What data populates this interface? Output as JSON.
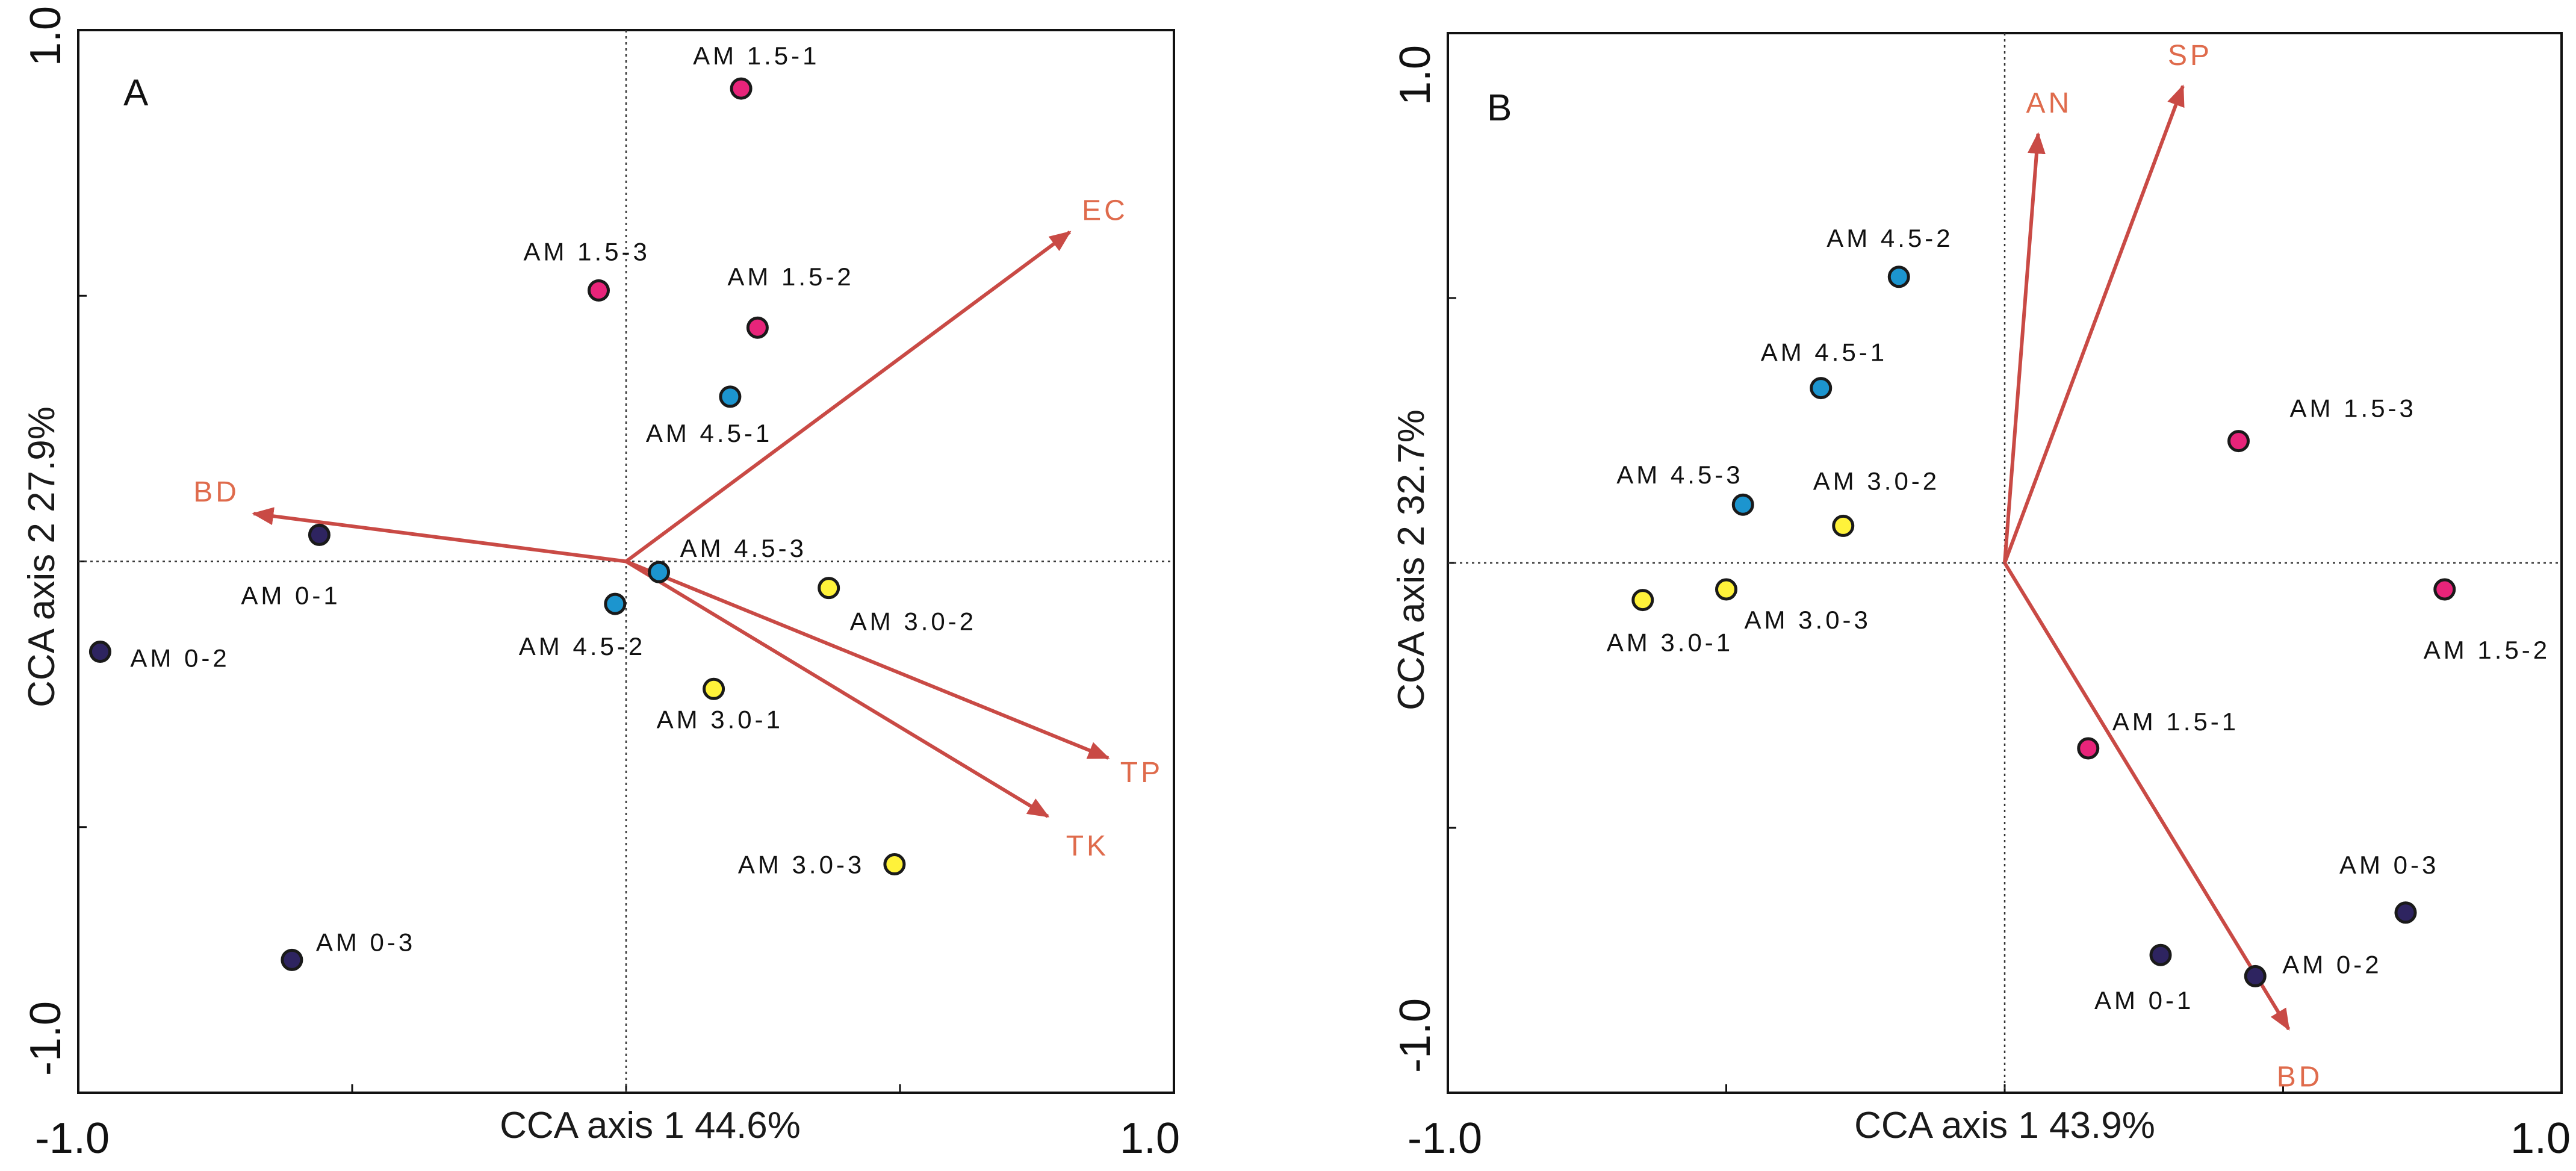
{
  "colors": {
    "AM 0": "#2e2460",
    "AM 1.5": "#e8247a",
    "AM 3.0": "#fff23a",
    "AM 4.5": "#1c95cf",
    "vector": "#c94a45",
    "vector_label": "#df6b4c"
  },
  "chart_data": [
    {
      "type": "scatter",
      "subtype": "cca-biplot",
      "panel": "A",
      "xlabel": "CCA axis 1 44.6%",
      "ylabel": "CCA axis 2 27.9%",
      "xlim": [
        -1.0,
        1.0
      ],
      "ylim": [
        -1.0,
        1.0
      ],
      "x_tick_labels": [
        "-1.0",
        "1.0"
      ],
      "y_tick_labels": [
        "1.0",
        "-1.0"
      ],
      "reference_lines": "dotted lines at x=0 and y=0",
      "points": [
        {
          "label": "AM 1.5-1",
          "group": "AM 1.5",
          "x": 0.21,
          "y": 0.89
        },
        {
          "label": "AM 1.5-3",
          "group": "AM 1.5",
          "x": -0.05,
          "y": 0.51
        },
        {
          "label": "AM 1.5-2",
          "group": "AM 1.5",
          "x": 0.24,
          "y": 0.44
        },
        {
          "label": "AM 4.5-1",
          "group": "AM 4.5",
          "x": 0.19,
          "y": 0.31
        },
        {
          "label": "AM 0-1",
          "group": "AM 0",
          "x": -0.56,
          "y": 0.05
        },
        {
          "label": "AM 4.5-3",
          "group": "AM 4.5",
          "x": 0.06,
          "y": -0.02
        },
        {
          "label": "AM 4.5-2",
          "group": "AM 4.5",
          "x": -0.02,
          "y": -0.08
        },
        {
          "label": "AM 3.0-2",
          "group": "AM 3.0",
          "x": 0.37,
          "y": -0.05
        },
        {
          "label": "AM 0-2",
          "group": "AM 0",
          "x": -0.96,
          "y": -0.17
        },
        {
          "label": "AM 3.0-1",
          "group": "AM 3.0",
          "x": 0.16,
          "y": -0.24
        },
        {
          "label": "AM 3.0-3",
          "group": "AM 3.0",
          "x": 0.49,
          "y": -0.57
        },
        {
          "label": "AM 0-3",
          "group": "AM 0",
          "x": -0.61,
          "y": -0.75
        }
      ],
      "vectors": [
        {
          "label": "EC",
          "x": 0.81,
          "y": 0.62
        },
        {
          "label": "BD",
          "x": -0.68,
          "y": 0.09
        },
        {
          "label": "TP",
          "x": 0.88,
          "y": -0.37
        },
        {
          "label": "TK",
          "x": 0.77,
          "y": -0.48
        }
      ]
    },
    {
      "type": "scatter",
      "subtype": "cca-biplot",
      "panel": "B",
      "xlabel": "CCA axis 1 43.9%",
      "ylabel": "CCA axis 2 32.7%",
      "xlim": [
        -1.0,
        1.0
      ],
      "ylim": [
        -1.0,
        1.0
      ],
      "x_tick_labels": [
        "-1.0",
        "1.0"
      ],
      "y_tick_labels": [
        "1.0",
        "-1.0"
      ],
      "reference_lines": "dotted lines at x=0 and y=0",
      "points": [
        {
          "label": "AM 4.5-2",
          "group": "AM 4.5",
          "x": -0.19,
          "y": 0.54
        },
        {
          "label": "AM 4.5-1",
          "group": "AM 4.5",
          "x": -0.33,
          "y": 0.33
        },
        {
          "label": "AM 1.5-3",
          "group": "AM 1.5",
          "x": 0.42,
          "y": 0.23
        },
        {
          "label": "AM 4.5-3",
          "group": "AM 4.5",
          "x": -0.47,
          "y": 0.11
        },
        {
          "label": "AM 3.0-2",
          "group": "AM 3.0",
          "x": -0.29,
          "y": 0.07
        },
        {
          "label": "AM 3.0-1",
          "group": "AM 3.0",
          "x": -0.65,
          "y": -0.07
        },
        {
          "label": "AM 3.0-3",
          "group": "AM 3.0",
          "x": -0.5,
          "y": -0.05
        },
        {
          "label": "AM 1.5-2",
          "group": "AM 1.5",
          "x": 0.79,
          "y": -0.05
        },
        {
          "label": "AM 1.5-1",
          "group": "AM 1.5",
          "x": 0.15,
          "y": -0.35
        },
        {
          "label": "AM 0-3",
          "group": "AM 0",
          "x": 0.72,
          "y": -0.66
        },
        {
          "label": "AM 0-1",
          "group": "AM 0",
          "x": 0.28,
          "y": -0.74
        },
        {
          "label": "AM 0-2",
          "group": "AM 0",
          "x": 0.45,
          "y": -0.78
        }
      ],
      "vectors": [
        {
          "label": "AN",
          "x": 0.06,
          "y": 0.81
        },
        {
          "label": "SP",
          "x": 0.32,
          "y": 0.9
        },
        {
          "label": "BD",
          "x": 0.51,
          "y": -0.88
        }
      ]
    }
  ]
}
